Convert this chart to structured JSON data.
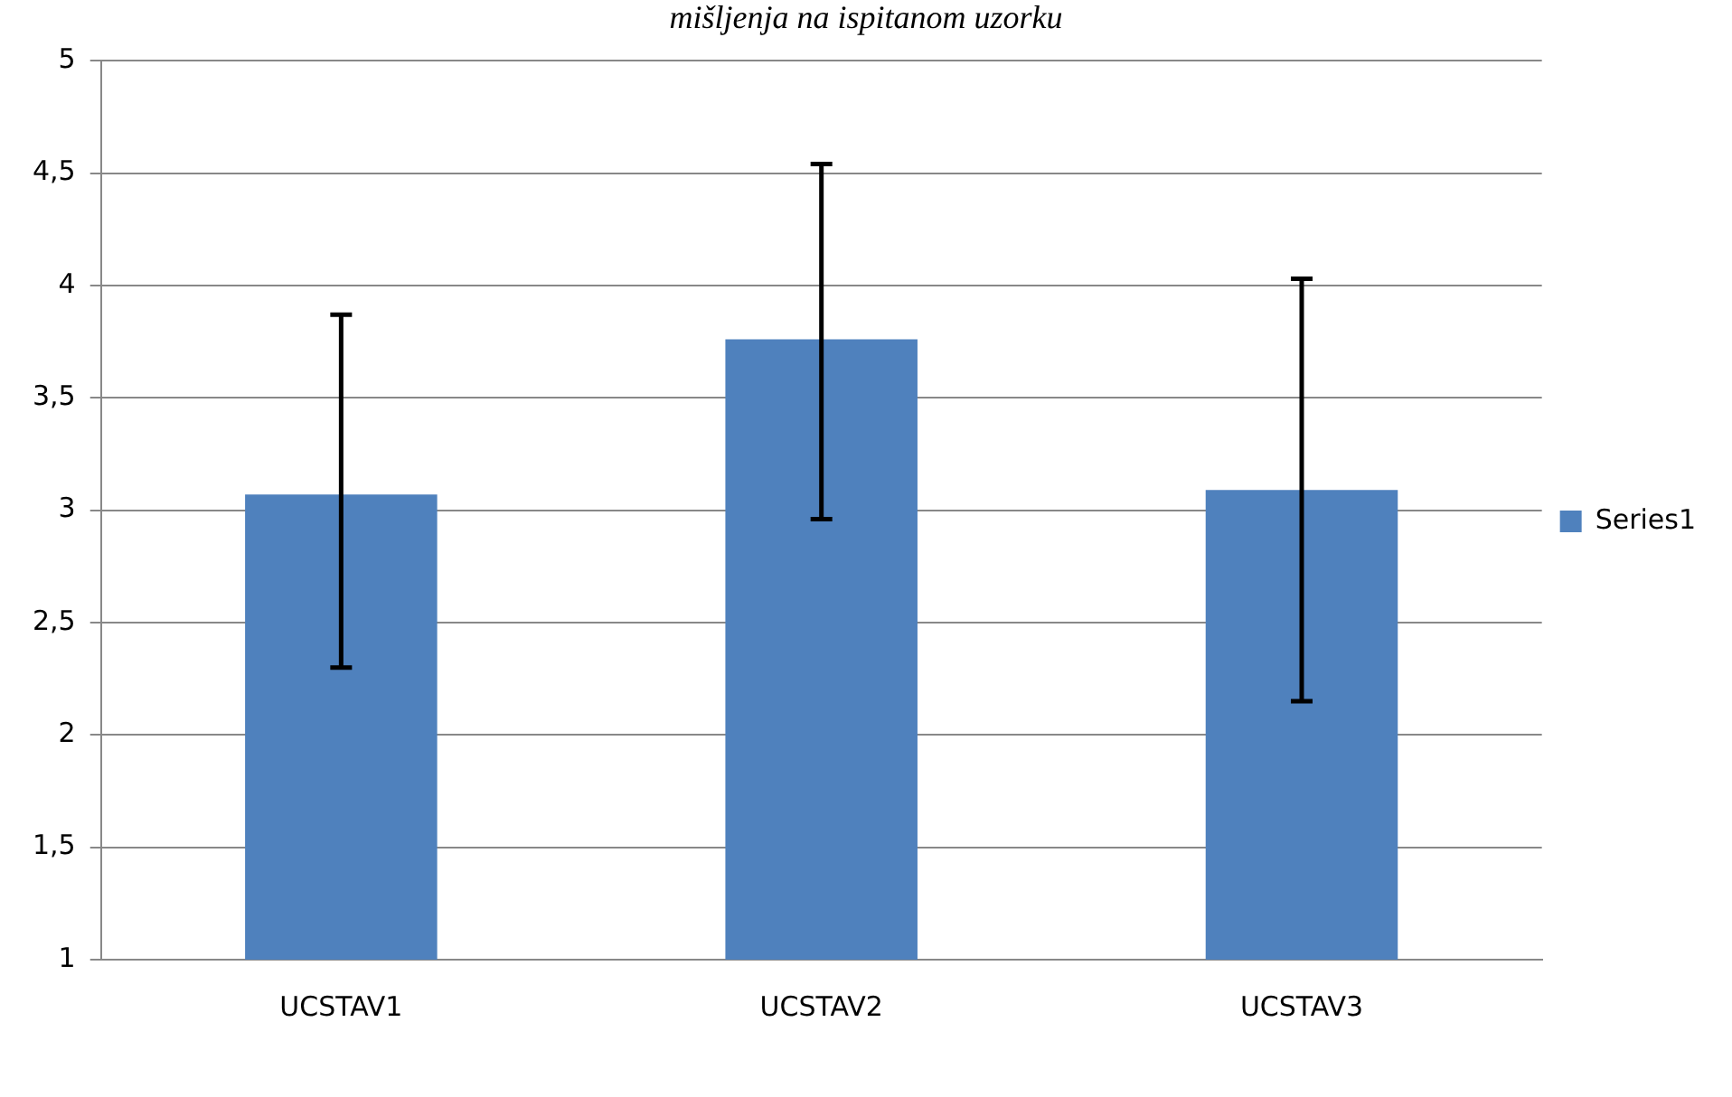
{
  "chart_data": {
    "type": "bar",
    "title": "mišljenja na ispitanom uzorku",
    "categories": [
      "UCSTAV1",
      "UCSTAV2",
      "UCSTAV3"
    ],
    "series": [
      {
        "name": "Series1",
        "color": "#4f81bd",
        "values": [
          3.07,
          3.76,
          3.09
        ],
        "errors": [
          [
            2.3,
            3.87
          ],
          [
            2.96,
            4.54
          ],
          [
            2.15,
            4.03
          ]
        ]
      }
    ],
    "ylim": [
      1,
      5
    ],
    "yticks": [
      1,
      {
        "value": 1.5,
        "label": "1,5"
      },
      2,
      {
        "value": 2.5,
        "label": "2,5"
      },
      3,
      {
        "value": 3.5,
        "label": "3,5"
      },
      4,
      {
        "value": 4.5,
        "label": "4,5"
      },
      5
    ],
    "grid": "y",
    "legend": "right"
  }
}
